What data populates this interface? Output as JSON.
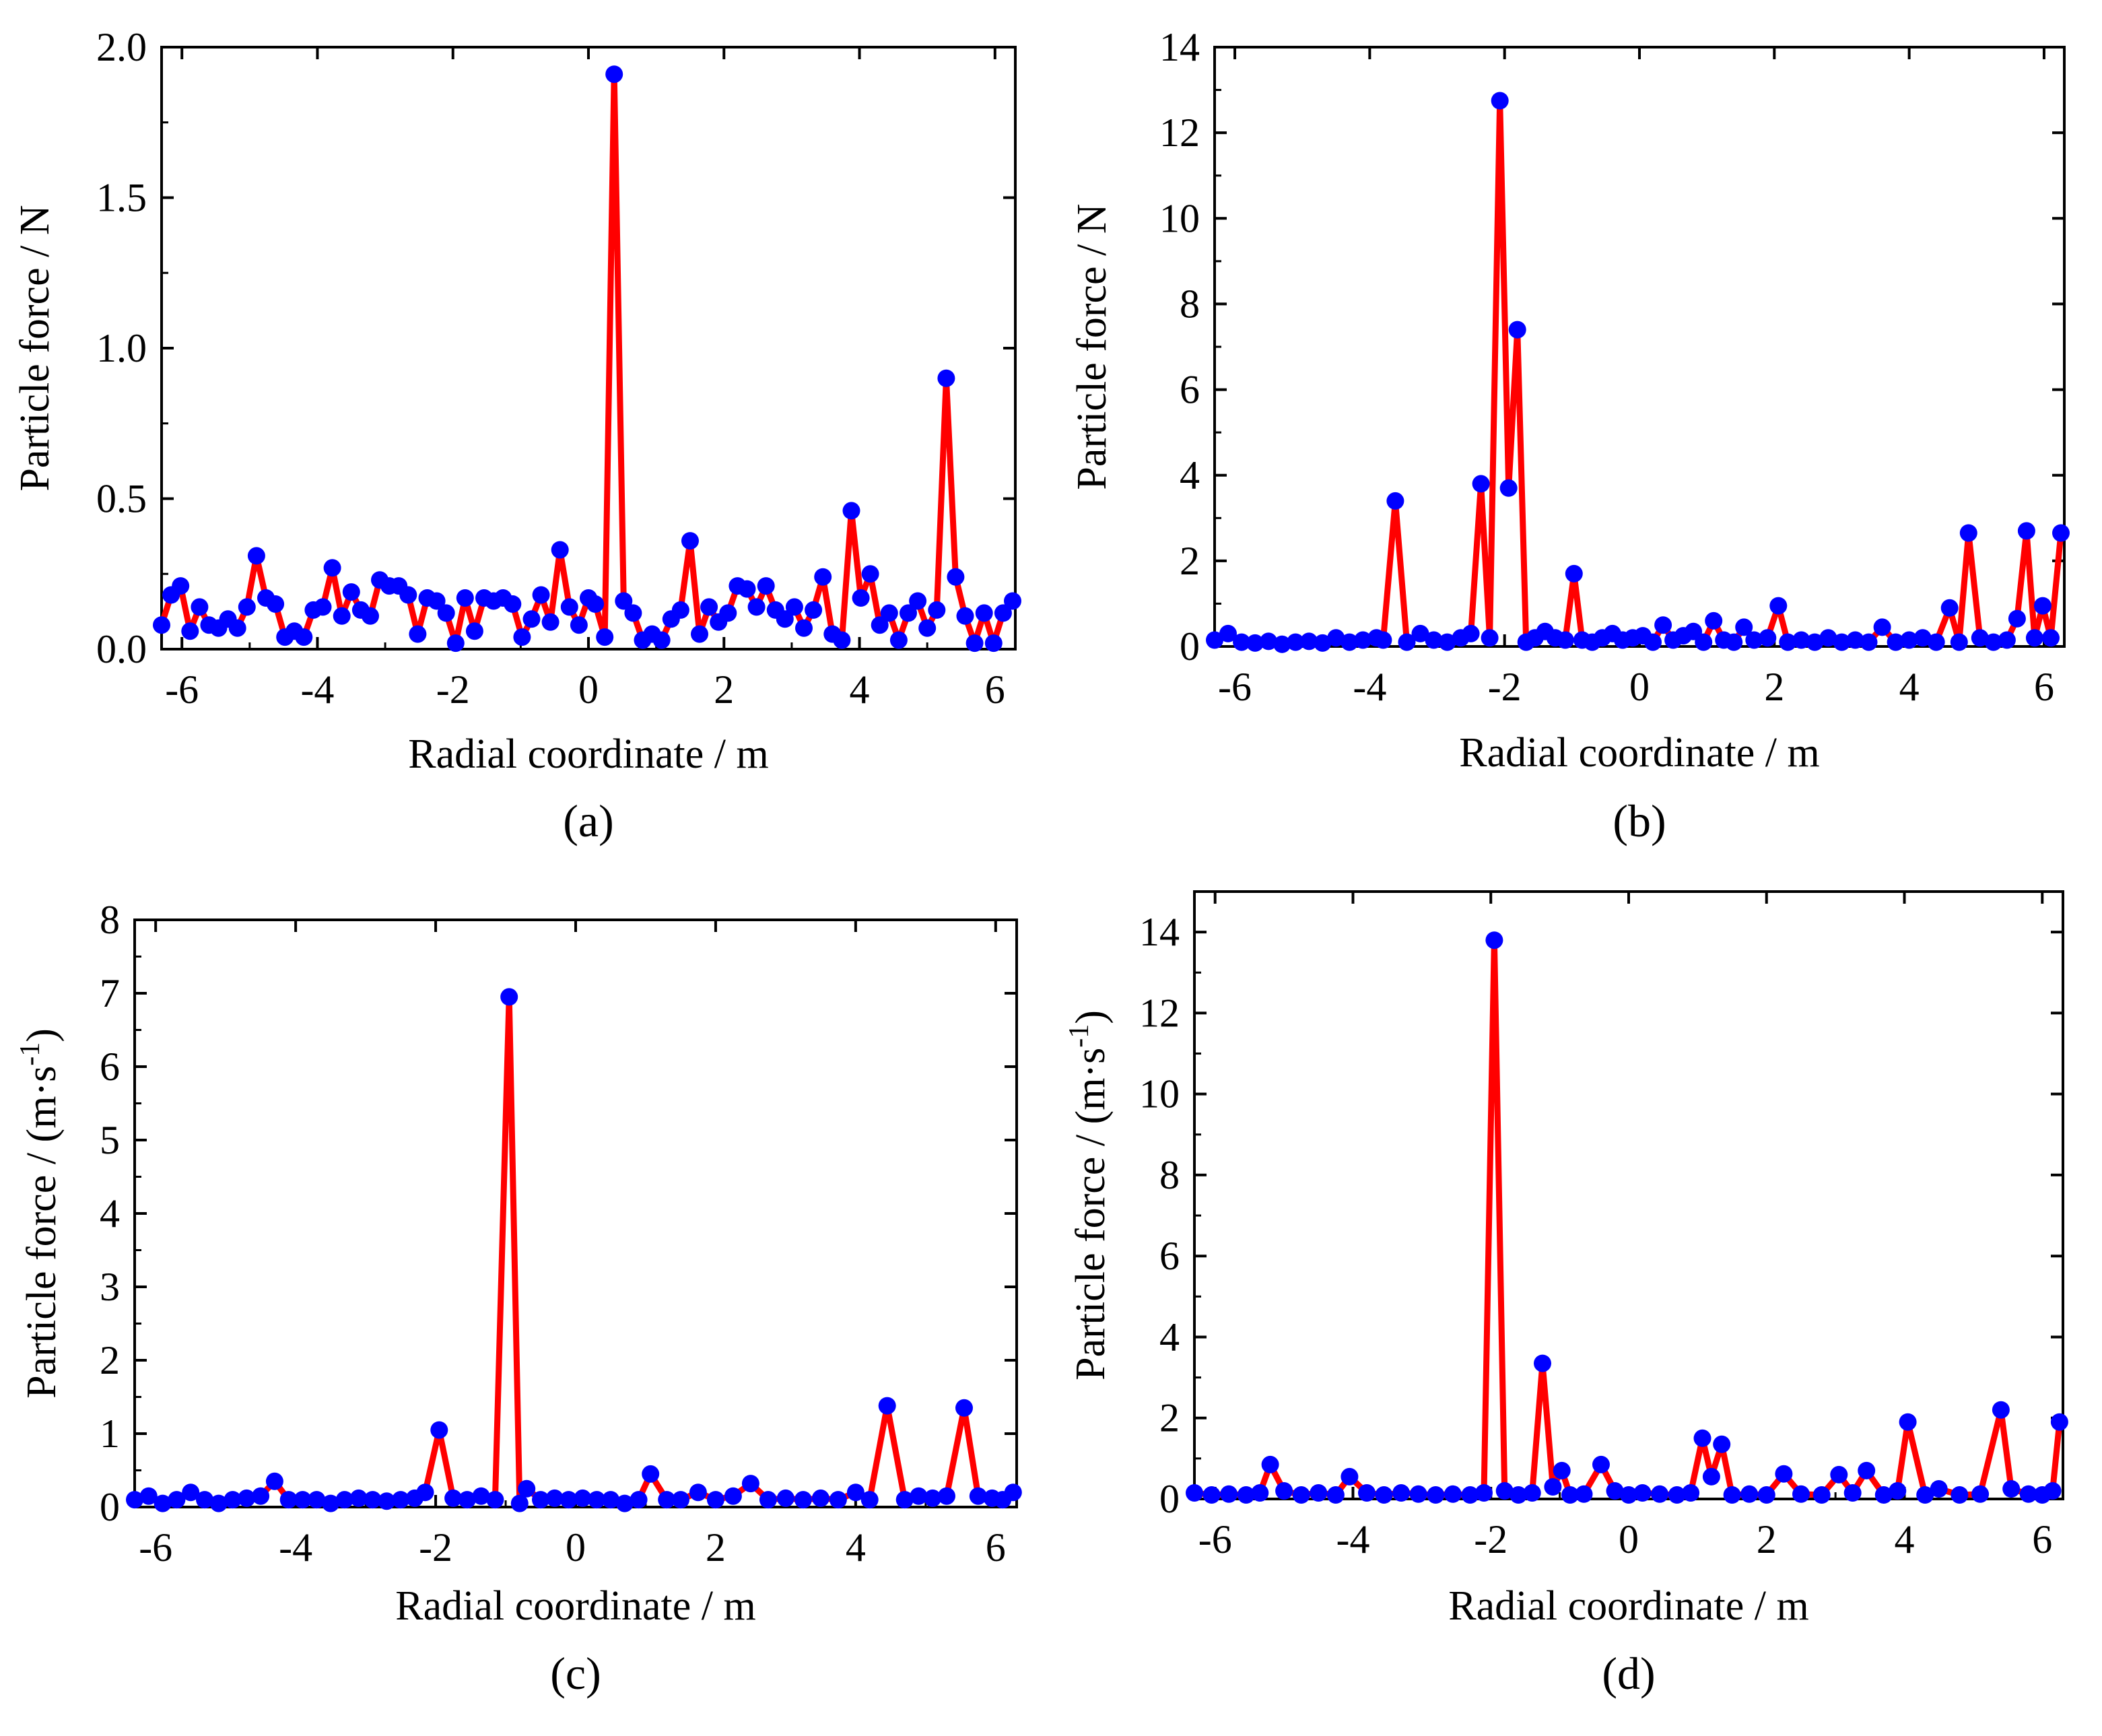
{
  "figure": {
    "line_color": "#ff0000",
    "marker_color": "#0000ff",
    "axis_color": "#000000"
  },
  "chart_data": [
    {
      "panel": "a",
      "type": "line",
      "caption": "(a)",
      "xlabel": "Radial coordinate / m",
      "ylabel": "Particle force / N",
      "xlim": [
        -6.3,
        6.3
      ],
      "ylim": [
        0,
        2.0
      ],
      "xticks": [
        -6,
        -4,
        -2,
        0,
        2,
        4,
        6
      ],
      "xtick_labels": [
        "-6",
        "-4",
        "-2",
        "0",
        "2",
        "4",
        "6"
      ],
      "yticks": [
        0,
        0.5,
        1.0,
        1.5,
        2.0
      ],
      "ytick_labels": [
        "0.0",
        "0.5",
        "1.0",
        "1.5",
        "2.0"
      ],
      "x": [
        -6.3,
        -6.16,
        -6.02,
        -5.88,
        -5.74,
        -5.6,
        -5.46,
        -5.32,
        -5.18,
        -5.04,
        -4.9,
        -4.76,
        -4.62,
        -4.48,
        -4.34,
        -4.2,
        -4.06,
        -3.92,
        -3.78,
        -3.64,
        -3.5,
        -3.36,
        -3.22,
        -3.08,
        -2.94,
        -2.8,
        -2.66,
        -2.52,
        -2.38,
        -2.24,
        -2.1,
        -1.96,
        -1.82,
        -1.68,
        -1.54,
        -1.4,
        -1.26,
        -1.12,
        -0.98,
        -0.84,
        -0.7,
        -0.56,
        -0.42,
        -0.28,
        -0.14,
        0.0,
        0.1,
        0.24,
        0.38,
        0.52,
        0.66,
        0.8,
        0.94,
        1.08,
        1.22,
        1.36,
        1.5,
        1.64,
        1.78,
        1.92,
        2.06,
        2.2,
        2.34,
        2.48,
        2.62,
        2.76,
        2.9,
        3.04,
        3.18,
        3.32,
        3.46,
        3.6,
        3.74,
        3.88,
        4.02,
        4.16,
        4.3,
        4.44,
        4.58,
        4.72,
        4.86,
        5.0,
        5.14,
        5.28,
        5.42,
        5.56,
        5.7,
        5.84,
        5.98,
        6.12,
        6.26
      ],
      "values": [
        0.08,
        0.18,
        0.21,
        0.06,
        0.14,
        0.08,
        0.07,
        0.1,
        0.07,
        0.14,
        0.31,
        0.17,
        0.15,
        0.04,
        0.06,
        0.04,
        0.13,
        0.14,
        0.27,
        0.11,
        0.19,
        0.13,
        0.11,
        0.23,
        0.21,
        0.21,
        0.18,
        0.05,
        0.17,
        0.16,
        0.12,
        0.02,
        0.17,
        0.06,
        0.17,
        0.16,
        0.17,
        0.15,
        0.04,
        0.1,
        0.18,
        0.09,
        0.33,
        0.14,
        0.08,
        0.17,
        0.15,
        0.04,
        1.91,
        0.16,
        0.12,
        0.03,
        0.05,
        0.03,
        0.1,
        0.13,
        0.36,
        0.05,
        0.14,
        0.09,
        0.12,
        0.21,
        0.2,
        0.14,
        0.21,
        0.13,
        0.1,
        0.14,
        0.07,
        0.13,
        0.24,
        0.05,
        0.03,
        0.46,
        0.17,
        0.25,
        0.08,
        0.12,
        0.03,
        0.12,
        0.16,
        0.07,
        0.13,
        0.9,
        0.24,
        0.11,
        0.02,
        0.12,
        0.02,
        0.12,
        0.16
      ]
    },
    {
      "panel": "b",
      "type": "line",
      "caption": "(b)",
      "xlabel": "Radial coordinate / m",
      "ylabel": "Particle force / N",
      "xlim": [
        -6.3,
        6.3
      ],
      "ylim": [
        0,
        14
      ],
      "xticks": [
        -6,
        -4,
        -2,
        0,
        2,
        4,
        6
      ],
      "xtick_labels": [
        "-6",
        "-4",
        "-2",
        "0",
        "2",
        "4",
        "6"
      ],
      "yticks": [
        0,
        2,
        4,
        6,
        8,
        10,
        12,
        14
      ],
      "ytick_labels": [
        "0",
        "2",
        "4",
        "6",
        "8",
        "10",
        "12",
        "14"
      ],
      "x": [
        -6.3,
        -6.1,
        -5.9,
        -5.7,
        -5.5,
        -5.3,
        -5.1,
        -4.9,
        -4.7,
        -4.5,
        -4.3,
        -4.1,
        -3.9,
        -3.8,
        -3.62,
        -3.45,
        -3.25,
        -3.05,
        -2.85,
        -2.65,
        -2.5,
        -2.35,
        -2.22,
        -2.07,
        -1.94,
        -1.81,
        -1.68,
        -1.55,
        -1.4,
        -1.25,
        -1.1,
        -0.97,
        -0.85,
        -0.7,
        -0.55,
        -0.4,
        -0.25,
        -0.1,
        0.05,
        0.2,
        0.35,
        0.5,
        0.65,
        0.8,
        0.95,
        1.1,
        1.25,
        1.4,
        1.55,
        1.7,
        1.9,
        2.06,
        2.2,
        2.4,
        2.6,
        2.8,
        3.0,
        3.2,
        3.4,
        3.6,
        3.8,
        4.0,
        4.2,
        4.4,
        4.6,
        4.74,
        4.88,
        5.05,
        5.25,
        5.45,
        5.6,
        5.74,
        5.86,
        5.98,
        6.1,
        6.25
      ],
      "values": [
        0.15,
        0.3,
        0.1,
        0.08,
        0.12,
        0.05,
        0.1,
        0.12,
        0.08,
        0.2,
        0.1,
        0.15,
        0.2,
        0.15,
        3.4,
        0.1,
        0.3,
        0.15,
        0.1,
        0.2,
        0.3,
        3.8,
        0.2,
        12.75,
        3.7,
        7.4,
        0.1,
        0.2,
        0.35,
        0.2,
        0.15,
        1.7,
        0.15,
        0.1,
        0.2,
        0.3,
        0.15,
        0.2,
        0.25,
        0.1,
        0.5,
        0.15,
        0.25,
        0.35,
        0.1,
        0.6,
        0.15,
        0.1,
        0.45,
        0.15,
        0.2,
        0.95,
        0.1,
        0.15,
        0.1,
        0.2,
        0.1,
        0.15,
        0.1,
        0.45,
        0.1,
        0.15,
        0.2,
        0.1,
        0.9,
        0.1,
        2.65,
        0.2,
        0.1,
        0.15,
        0.65,
        2.7,
        0.2,
        0.95,
        0.2,
        2.65
      ]
    },
    {
      "panel": "c",
      "type": "line",
      "caption": "(c)",
      "xlabel": "Radial coordinate / m",
      "ylabel": "Particle force / (m·s-1)",
      "ylabel_base": "Particle force / (m·s",
      "ylabel_sup": "-1",
      "ylabel_end": ")",
      "xlim": [
        -6.3,
        6.3
      ],
      "ylim": [
        0,
        8
      ],
      "xticks": [
        -6,
        -4,
        -2,
        0,
        2,
        4,
        6
      ],
      "xtick_labels": [
        "-6",
        "-4",
        "-2",
        "0",
        "2",
        "4",
        "6"
      ],
      "yticks": [
        0,
        1,
        2,
        3,
        4,
        5,
        6,
        7,
        8
      ],
      "ytick_labels": [
        "0",
        "1",
        "2",
        "3",
        "4",
        "5",
        "6",
        "7",
        "8"
      ],
      "x": [
        -6.3,
        -6.1,
        -5.9,
        -5.7,
        -5.5,
        -5.3,
        -5.1,
        -4.9,
        -4.7,
        -4.5,
        -4.3,
        -4.1,
        -3.9,
        -3.7,
        -3.5,
        -3.3,
        -3.1,
        -2.9,
        -2.7,
        -2.5,
        -2.3,
        -2.15,
        -1.95,
        -1.75,
        -1.55,
        -1.35,
        -1.15,
        -0.95,
        -0.8,
        -0.7,
        -0.5,
        -0.3,
        -0.1,
        0.1,
        0.3,
        0.5,
        0.7,
        0.9,
        1.07,
        1.3,
        1.5,
        1.75,
        2.0,
        2.25,
        2.5,
        2.75,
        3.0,
        3.25,
        3.5,
        3.75,
        4.0,
        4.2,
        4.45,
        4.7,
        4.9,
        5.1,
        5.3,
        5.55,
        5.75,
        5.95,
        6.1,
        6.25
      ],
      "values": [
        0.1,
        0.15,
        0.05,
        0.1,
        0.2,
        0.1,
        0.05,
        0.1,
        0.12,
        0.15,
        0.35,
        0.1,
        0.1,
        0.1,
        0.05,
        0.1,
        0.12,
        0.1,
        0.08,
        0.1,
        0.12,
        0.2,
        1.05,
        0.12,
        0.1,
        0.15,
        0.1,
        6.95,
        0.05,
        0.25,
        0.1,
        0.12,
        0.1,
        0.12,
        0.1,
        0.1,
        0.05,
        0.1,
        0.45,
        0.1,
        0.1,
        0.2,
        0.1,
        0.15,
        0.32,
        0.1,
        0.12,
        0.1,
        0.12,
        0.1,
        0.2,
        0.1,
        1.38,
        0.1,
        0.15,
        0.12,
        0.15,
        1.35,
        0.15,
        0.12,
        0.1,
        0.2
      ]
    },
    {
      "panel": "d",
      "type": "line",
      "caption": "(d)",
      "xlabel": "Radial coordinate / m",
      "ylabel": "Particle force / (m·s-1)",
      "ylabel_base": "Particle force / (m·s",
      "ylabel_sup": "-1",
      "ylabel_end": ")",
      "xlim": [
        -6.3,
        6.3
      ],
      "ylim": [
        0,
        15
      ],
      "xticks": [
        -6,
        -4,
        -2,
        0,
        2,
        4,
        6
      ],
      "xtick_labels": [
        "-6",
        "-4",
        "-2",
        "0",
        "2",
        "4",
        "6"
      ],
      "yticks": [
        0,
        2,
        4,
        6,
        8,
        10,
        12,
        14
      ],
      "ytick_labels": [
        "0",
        "2",
        "4",
        "6",
        "8",
        "10",
        "12",
        "14"
      ],
      "x": [
        -6.3,
        -6.05,
        -5.8,
        -5.55,
        -5.35,
        -5.2,
        -5.0,
        -4.75,
        -4.5,
        -4.25,
        -4.05,
        -3.8,
        -3.55,
        -3.3,
        -3.05,
        -2.8,
        -2.55,
        -2.3,
        -2.1,
        -1.95,
        -1.8,
        -1.6,
        -1.4,
        -1.25,
        -1.1,
        -0.97,
        -0.85,
        -0.65,
        -0.4,
        -0.2,
        0.0,
        0.2,
        0.45,
        0.7,
        0.9,
        1.07,
        1.2,
        1.35,
        1.5,
        1.75,
        2.0,
        2.25,
        2.5,
        2.8,
        3.05,
        3.25,
        3.45,
        3.7,
        3.9,
        4.05,
        4.3,
        4.5,
        4.8,
        5.1,
        5.4,
        5.55,
        5.8,
        6.0,
        6.15,
        6.25
      ],
      "values": [
        0.15,
        0.1,
        0.12,
        0.1,
        0.15,
        0.85,
        0.2,
        0.1,
        0.15,
        0.1,
        0.55,
        0.15,
        0.1,
        0.15,
        0.12,
        0.1,
        0.12,
        0.1,
        0.15,
        13.8,
        0.2,
        0.1,
        0.15,
        3.35,
        0.3,
        0.7,
        0.1,
        0.12,
        0.85,
        0.2,
        0.1,
        0.15,
        0.12,
        0.1,
        0.15,
        1.5,
        0.55,
        1.35,
        0.1,
        0.12,
        0.1,
        0.62,
        0.12,
        0.1,
        0.6,
        0.15,
        0.7,
        0.1,
        0.2,
        1.9,
        0.1,
        0.25,
        0.1,
        0.12,
        2.2,
        0.25,
        0.12,
        0.1,
        0.2,
        1.9
      ]
    }
  ]
}
